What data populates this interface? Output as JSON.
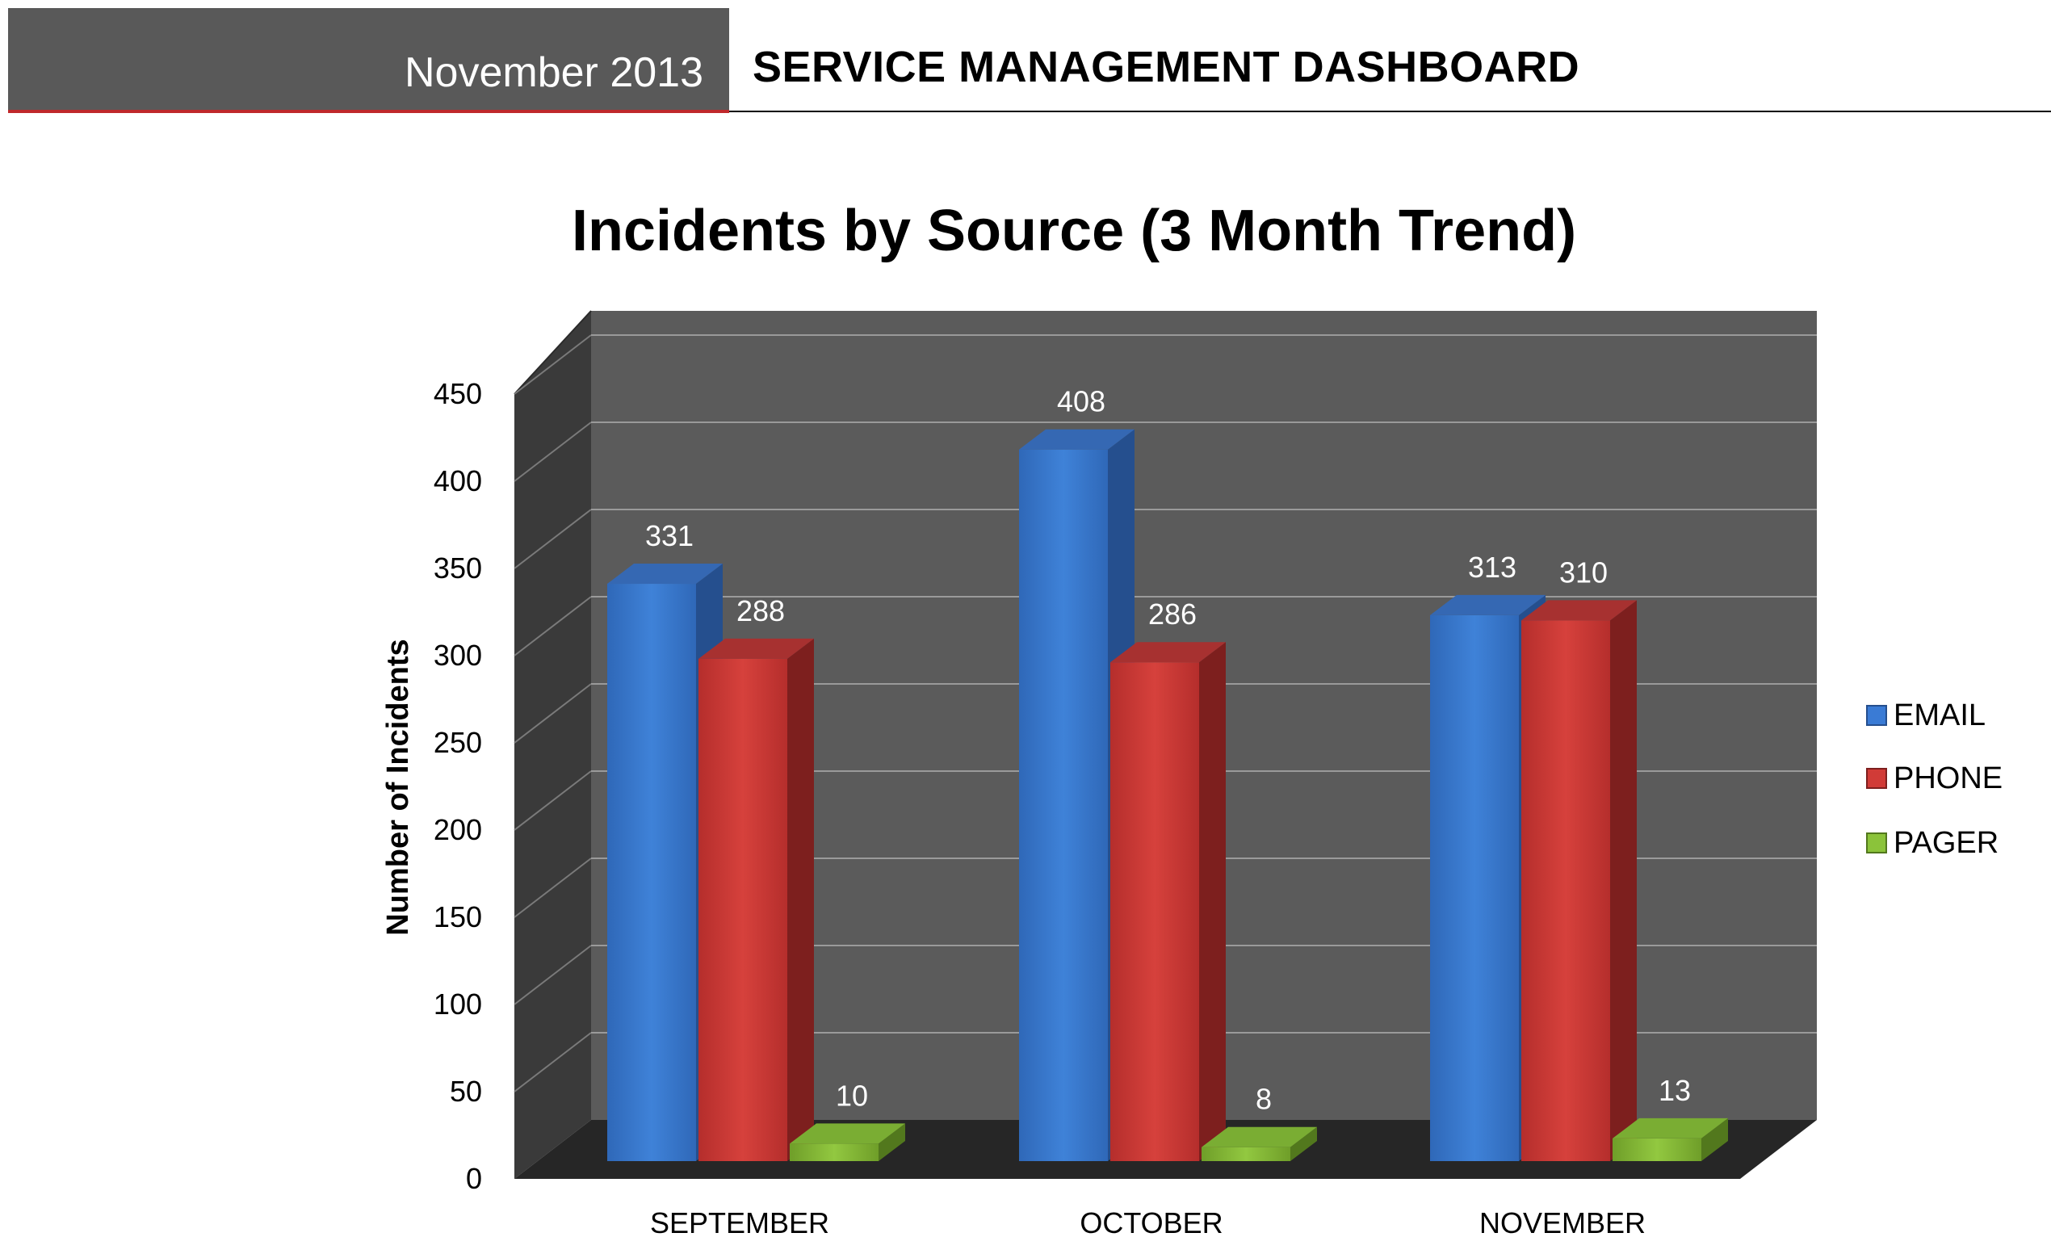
{
  "header": {
    "date": "November 2013",
    "title": "SERVICE MANAGEMENT DASHBOARD"
  },
  "chart_data": {
    "type": "bar",
    "style": "3d-clustered-column",
    "title": "Incidents by Source (3 Month Trend)",
    "xlabel": "",
    "ylabel": "Number of Incidents",
    "ylim": [
      0,
      450
    ],
    "yticks": [
      0,
      50,
      100,
      150,
      200,
      250,
      300,
      350,
      400,
      450
    ],
    "grid": true,
    "legend_position": "right",
    "categories": [
      "SEPTEMBER",
      "OCTOBER",
      "NOVEMBER"
    ],
    "series": [
      {
        "name": "EMAIL",
        "values": [
          331,
          408,
          313
        ],
        "color": "#3a7bd5"
      },
      {
        "name": "PHONE",
        "values": [
          288,
          286,
          310
        ],
        "color": "#d13b37"
      },
      {
        "name": "PAGER",
        "values": [
          10,
          8,
          13
        ],
        "color": "#8bc33a"
      }
    ],
    "data_labels": true
  }
}
